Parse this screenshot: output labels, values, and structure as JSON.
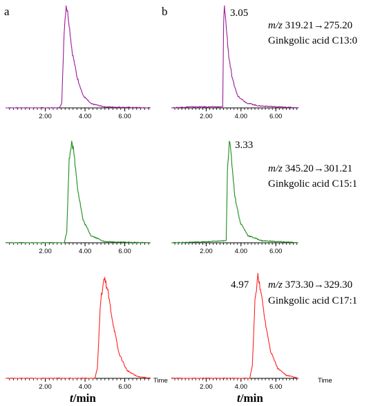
{
  "panel_labels": {
    "a": "a",
    "b": "b"
  },
  "x_axis": {
    "label_italic": "t",
    "label_rest": "/min",
    "ticks": [
      "2.00",
      "4.00",
      "6.00"
    ],
    "end_label": "Time",
    "xlim": [
      0,
      7.3
    ]
  },
  "annotations": [
    {
      "mz_prefix": "m/z",
      "mz": "319.21→275.20",
      "compound": "Ginkgolic acid C13:0"
    },
    {
      "mz_prefix": "m/z",
      "mz": "345.20→301.21",
      "compound": "Ginkgolic acid C15:1"
    },
    {
      "mz_prefix": "m/z",
      "mz": "373.30→329.30",
      "compound": "Ginkgolic acid C17:1"
    }
  ],
  "chart_data": [
    {
      "type": "line",
      "panel": "a",
      "color": "#9b189b",
      "series": [
        {
          "peak_time": 3.05,
          "values": [
            [
              0,
              0
            ],
            [
              2.7,
              0
            ],
            [
              2.83,
              0.05
            ],
            [
              2.95,
              0.75
            ],
            [
              3.05,
              1
            ],
            [
              3.15,
              0.9
            ],
            [
              3.35,
              0.55
            ],
            [
              3.6,
              0.3
            ],
            [
              3.9,
              0.12
            ],
            [
              4.3,
              0.04
            ],
            [
              5,
              0.01
            ],
            [
              7.3,
              0
            ]
          ]
        }
      ]
    },
    {
      "type": "line",
      "panel": "b",
      "color": "#9b189b",
      "peak_label": "3.05",
      "series": [
        {
          "peak_time": 3.05,
          "values": [
            [
              0,
              0
            ],
            [
              1,
              0.01
            ],
            [
              2.95,
              0.01
            ],
            [
              3,
              0.8
            ],
            [
              3.05,
              1
            ],
            [
              3.12,
              0.85
            ],
            [
              3.3,
              0.5
            ],
            [
              3.5,
              0.28
            ],
            [
              3.8,
              0.12
            ],
            [
              4.3,
              0.05
            ],
            [
              5,
              0.02
            ],
            [
              7.3,
              0
            ]
          ]
        }
      ]
    },
    {
      "type": "line",
      "panel": "a",
      "color": "#1a8c1a",
      "series": [
        {
          "peak_time": 3.33,
          "values": [
            [
              0,
              0
            ],
            [
              2.95,
              0
            ],
            [
              3.08,
              0.1
            ],
            [
              3.2,
              0.8
            ],
            [
              3.33,
              1
            ],
            [
              3.45,
              0.85
            ],
            [
              3.65,
              0.5
            ],
            [
              3.9,
              0.22
            ],
            [
              4.3,
              0.07
            ],
            [
              5,
              0.01
            ],
            [
              7.3,
              0
            ]
          ]
        }
      ]
    },
    {
      "type": "line",
      "panel": "b",
      "color": "#1a8c1a",
      "peak_label": "3.33",
      "series": [
        {
          "peak_time": 3.33,
          "values": [
            [
              0,
              0
            ],
            [
              2,
              0.01
            ],
            [
              3.15,
              0.02
            ],
            [
              3.22,
              0.7
            ],
            [
              3.33,
              1
            ],
            [
              3.45,
              0.82
            ],
            [
              3.65,
              0.45
            ],
            [
              3.95,
              0.2
            ],
            [
              4.4,
              0.07
            ],
            [
              5.2,
              0.02
            ],
            [
              7.3,
              0
            ]
          ]
        }
      ]
    },
    {
      "type": "line",
      "panel": "a",
      "color": "#ff2020",
      "series": [
        {
          "peak_time": 4.97,
          "values": [
            [
              0,
              0
            ],
            [
              4.5,
              0
            ],
            [
              4.62,
              0.1
            ],
            [
              4.78,
              0.75
            ],
            [
              4.97,
              1
            ],
            [
              5.15,
              0.85
            ],
            [
              5.4,
              0.55
            ],
            [
              5.7,
              0.25
            ],
            [
              6.1,
              0.08
            ],
            [
              6.6,
              0.02
            ],
            [
              7.3,
              0
            ]
          ]
        }
      ]
    },
    {
      "type": "line",
      "panel": "b",
      "color": "#ff2020",
      "peak_label": "4.97",
      "series": [
        {
          "peak_time": 4.97,
          "values": [
            [
              0,
              0
            ],
            [
              4.5,
              0
            ],
            [
              4.65,
              0.12
            ],
            [
              4.8,
              0.75
            ],
            [
              4.97,
              1
            ],
            [
              5.15,
              0.85
            ],
            [
              5.4,
              0.55
            ],
            [
              5.7,
              0.27
            ],
            [
              6.1,
              0.1
            ],
            [
              6.6,
              0.03
            ],
            [
              7.3,
              0
            ]
          ]
        }
      ]
    }
  ]
}
